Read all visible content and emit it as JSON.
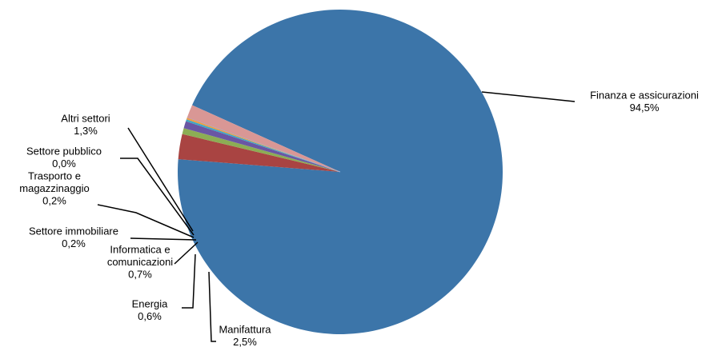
{
  "chart_data": {
    "type": "pie",
    "title": "",
    "unit": "%",
    "slices": [
      {
        "lines": [
          "Finanza e assicurazioni"
        ],
        "value_label": "94,5%",
        "value": 94.5,
        "color": "#3c75a9"
      },
      {
        "lines": [
          "Manifattura"
        ],
        "value_label": "2,5%",
        "value": 2.5,
        "color": "#a94442"
      },
      {
        "lines": [
          "Energia"
        ],
        "value_label": "0,6%",
        "value": 0.6,
        "color": "#8cad54"
      },
      {
        "lines": [
          "Informatica e",
          "comunicazioni"
        ],
        "value_label": "0,7%",
        "value": 0.7,
        "color": "#6a56a4"
      },
      {
        "lines": [
          "Settore immobiliare"
        ],
        "value_label": "0,2%",
        "value": 0.2,
        "color": "#3fa6c4"
      },
      {
        "lines": [
          "Trasporto e",
          "magazzinaggio"
        ],
        "value_label": "0,2%",
        "value": 0.2,
        "color": "#f59b3e"
      },
      {
        "lines": [
          "Settore pubblico"
        ],
        "value_label": "0,0%",
        "value": 0.0,
        "color": "#9db7de"
      },
      {
        "lines": [
          "Altri settori"
        ],
        "value_label": "1,3%",
        "value": 1.3,
        "color": "#d99795"
      }
    ]
  }
}
